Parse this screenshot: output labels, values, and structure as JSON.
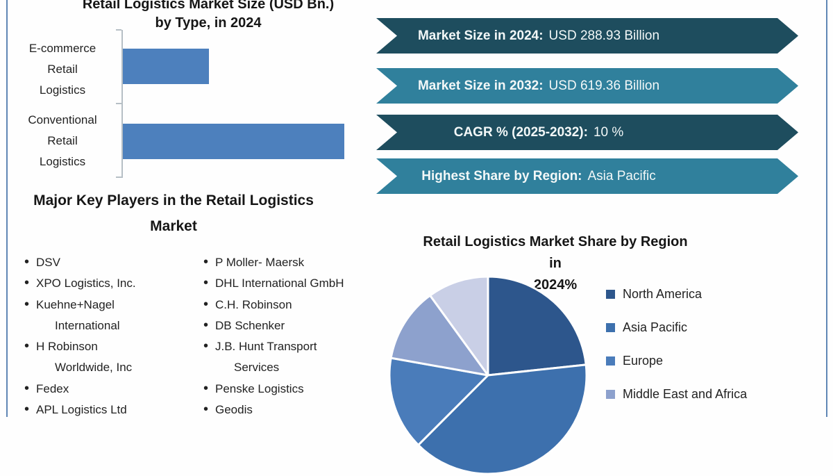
{
  "page": {
    "border_color": "#5f86b5",
    "background": "#fefefe"
  },
  "bar_chart_section": {
    "title_line1": "Retail Logistics Market Size (USD Bn.)",
    "title_line2": "by Type, in 2024"
  },
  "banners": {
    "items": [
      {
        "label": "Market Size in 2024:",
        "value": "USD 288.93 Billion",
        "color": "#1e4d5e"
      },
      {
        "label": "Market Size in 2032:",
        "value": "USD 619.36 Billion",
        "color": "#30809c"
      },
      {
        "label": "CAGR % (2025-2032):",
        "value": "10 %",
        "color": "#1e4d5e"
      },
      {
        "label": "Highest Share by Region:",
        "value": "Asia Pacific",
        "color": "#30809c"
      }
    ]
  },
  "players": {
    "heading_line1": "Major Key Players in the Retail Logistics",
    "heading_line2": "Market",
    "columns": [
      {
        "items": [
          {
            "lines": [
              "DSV"
            ]
          },
          {
            "lines": [
              "XPO Logistics, Inc."
            ]
          },
          {
            "lines": [
              "Kuehne+Nagel",
              "International"
            ]
          },
          {
            "lines": [
              "H Robinson",
              "Worldwide, Inc"
            ]
          },
          {
            "lines": [
              "Fedex"
            ]
          },
          {
            "lines": [
              "APL Logistics Ltd"
            ]
          }
        ]
      },
      {
        "items": [
          {
            "lines": [
              "P Moller- Maersk"
            ]
          },
          {
            "lines": [
              "DHL International GmbH"
            ]
          },
          {
            "lines": [
              "C.H. Robinson"
            ]
          },
          {
            "lines": [
              "DB Schenker"
            ]
          },
          {
            "lines": [
              "J.B. Hunt Transport",
              "Services"
            ]
          },
          {
            "lines": [
              "Penske Logistics"
            ]
          },
          {
            "lines": [
              "Geodis"
            ]
          }
        ]
      }
    ]
  },
  "pie_section": {
    "title_line1": "Retail Logistics Market Share by Region in",
    "title_line2": "2024%"
  },
  "chart_data": [
    {
      "type": "bar",
      "orientation": "horizontal",
      "title": "Retail Logistics Market Size (USD Bn.) by Type, in 2024",
      "categories": [
        "E-commerce Retail Logistics",
        "Conventional Retail Logistics"
      ],
      "category_lines": [
        [
          "E-commerce",
          "Retail",
          "Logistics"
        ],
        [
          "Conventional",
          "Retail",
          "Logistics"
        ]
      ],
      "values_pct_of_max": [
        39,
        100
      ],
      "bar_color": "#4d80bd",
      "value_labels_shown": false,
      "axis_labels_shown": false,
      "note": "Bars carry no numeric labels in source; lengths read from pixels (conventional ≈ 2.56× e-commerce)."
    },
    {
      "type": "pie",
      "title": "Retail Logistics Market Share by Region in 2024%",
      "start_angle_deg_from_top": 0,
      "direction": "clockwise",
      "slices": [
        {
          "label": "North America",
          "share_pct": 23.3,
          "color": "#2d568c"
        },
        {
          "label": "Asia Pacific",
          "share_pct": 39.2,
          "color": "#3d70ad"
        },
        {
          "label": "Europe",
          "share_pct": 15.3,
          "color": "#4a7cba"
        },
        {
          "label": "Middle East and Africa",
          "share_pct": 12.2,
          "color": "#8da1cd"
        },
        {
          "label": "",
          "share_pct": 10.0,
          "color": "#c9cfe6",
          "note": "legend entry cut off at bottom edge of screenshot"
        }
      ],
      "legend_visible": [
        "North America",
        "Asia Pacific",
        "Europe",
        "Middle East and Africa"
      ],
      "legend_position": "right",
      "note": "Shares estimated from slice angles; pie is clipped at the bottom of the screenshot."
    }
  ]
}
